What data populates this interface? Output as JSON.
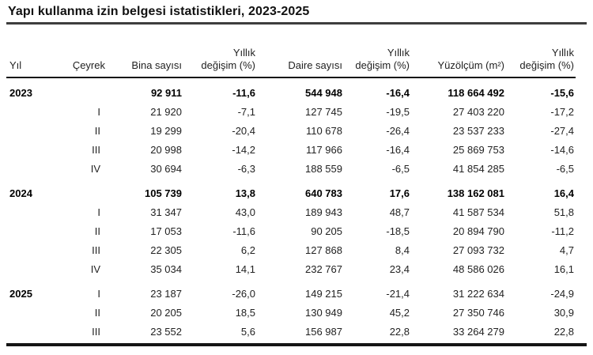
{
  "page": {
    "title": "Yapı kullanma izin belgesi istatistikleri, 2023-2025"
  },
  "chart_data": {
    "type": "table",
    "title": "Yapı kullanma izin belgesi istatistikleri, 2023-2025",
    "columns": [
      "Yıl",
      "Çeyrek",
      "Bina sayısı",
      "Yıllık değişim (%)",
      "Daire sayısı",
      "Yıllık değişim (%)",
      "Yüzölçüm (m²)",
      "Yıllık değişim (%)"
    ],
    "header": [
      {
        "line2": "Yıl"
      },
      {
        "line2": "Çeyrek"
      },
      {
        "line2": "Bina sayısı"
      },
      {
        "line1": "Yıllık",
        "line2": "değişim (%)"
      },
      {
        "line2": "Daire sayısı"
      },
      {
        "line1": "Yıllık",
        "line2": "değişim (%)"
      },
      {
        "line2": "Yüzölçüm (m²)"
      },
      {
        "line1": "Yıllık",
        "line2": "değişim (%)"
      }
    ],
    "rows": [
      {
        "year": "2023",
        "quarter": "",
        "bold": true,
        "group_start": true,
        "values": [
          "92 911",
          "-11,6",
          "544 948",
          "-16,4",
          "118 664 492",
          "-15,6"
        ]
      },
      {
        "year": "",
        "quarter": "I",
        "bold": false,
        "group_start": false,
        "values": [
          "21 920",
          "-7,1",
          "127 745",
          "-19,5",
          "27 403 220",
          "-17,2"
        ]
      },
      {
        "year": "",
        "quarter": "II",
        "bold": false,
        "group_start": false,
        "values": [
          "19 299",
          "-20,4",
          "110 678",
          "-26,4",
          "23 537 233",
          "-27,4"
        ]
      },
      {
        "year": "",
        "quarter": "III",
        "bold": false,
        "group_start": false,
        "values": [
          "20 998",
          "-14,2",
          "117 966",
          "-16,4",
          "25 869 753",
          "-14,6"
        ]
      },
      {
        "year": "",
        "quarter": "IV",
        "bold": false,
        "group_start": false,
        "values": [
          "30 694",
          "-6,3",
          "188 559",
          "-6,5",
          "41 854 285",
          "-6,5"
        ]
      },
      {
        "year": "2024",
        "quarter": "",
        "bold": true,
        "group_start": true,
        "values": [
          "105 739",
          "13,8",
          "640 783",
          "17,6",
          "138 162 081",
          "16,4"
        ]
      },
      {
        "year": "",
        "quarter": "I",
        "bold": false,
        "group_start": false,
        "values": [
          "31 347",
          "43,0",
          "189 943",
          "48,7",
          "41 587 534",
          "51,8"
        ]
      },
      {
        "year": "",
        "quarter": "II",
        "bold": false,
        "group_start": false,
        "values": [
          "17 053",
          "-11,6",
          "90 205",
          "-18,5",
          "20 894 790",
          "-11,2"
        ]
      },
      {
        "year": "",
        "quarter": "III",
        "bold": false,
        "group_start": false,
        "values": [
          "22 305",
          "6,2",
          "127 868",
          "8,4",
          "27 093 732",
          "4,7"
        ]
      },
      {
        "year": "",
        "quarter": "IV",
        "bold": false,
        "group_start": false,
        "values": [
          "35 034",
          "14,1",
          "232 767",
          "23,4",
          "48 586 026",
          "16,1"
        ]
      },
      {
        "year": "2025",
        "quarter": "I",
        "bold": false,
        "group_start": true,
        "values": [
          "23 187",
          "-26,0",
          "149 215",
          "-21,4",
          "31 222 634",
          "-24,9"
        ]
      },
      {
        "year": "",
        "quarter": "II",
        "bold": false,
        "group_start": false,
        "values": [
          "20 205",
          "18,5",
          "130 949",
          "45,2",
          "27 350 746",
          "30,9"
        ]
      },
      {
        "year": "",
        "quarter": "III",
        "bold": false,
        "group_start": false,
        "values": [
          "23 552",
          "5,6",
          "156 987",
          "22,8",
          "33 264 279",
          "22,8"
        ]
      }
    ]
  },
  "colors": {
    "title_rule": "#3d3d3d",
    "table_rule": "#141414",
    "text": "#1f1f1f"
  }
}
